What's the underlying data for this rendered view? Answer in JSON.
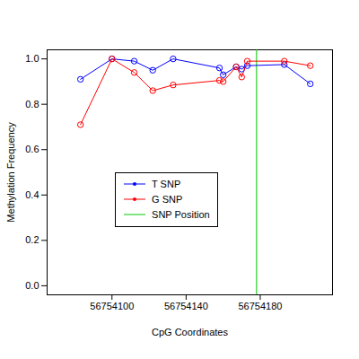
{
  "chart_data": {
    "type": "line",
    "x_label": "CpG Coordinates",
    "y_label": "Methylation Frequency",
    "x": [
      56754083,
      56754100,
      56754112,
      56754122,
      56754133,
      56754158,
      56754160,
      56754167,
      56754170,
      56754173,
      56754193,
      56754207
    ],
    "series": [
      {
        "name": "T SNP",
        "color": "#0000ff",
        "marker": "circle",
        "values": [
          0.91,
          1.0,
          0.99,
          0.95,
          1.0,
          0.96,
          0.93,
          0.965,
          0.955,
          0.97,
          0.975,
          0.89
        ]
      },
      {
        "name": "G SNP",
        "color": "#ff0000",
        "marker": "circle",
        "values": [
          0.71,
          1.0,
          0.94,
          0.86,
          0.885,
          0.905,
          0.9,
          0.965,
          0.92,
          0.99,
          0.99,
          0.97
        ]
      }
    ],
    "snp_position": {
      "name": "SNP Position",
      "value": 56754178,
      "color": "#00c800"
    },
    "xlim": [
      56754065,
      56754219
    ],
    "xticks": [
      56754100,
      56754140,
      56754180
    ],
    "ylim": [
      -0.04,
      1.04
    ],
    "yticks": [
      {
        "value": 0,
        "label": "0.0"
      },
      0.2,
      0.4,
      0.6,
      0.8,
      {
        "value": 1,
        "label": "1.0"
      }
    ],
    "legend": "center"
  }
}
